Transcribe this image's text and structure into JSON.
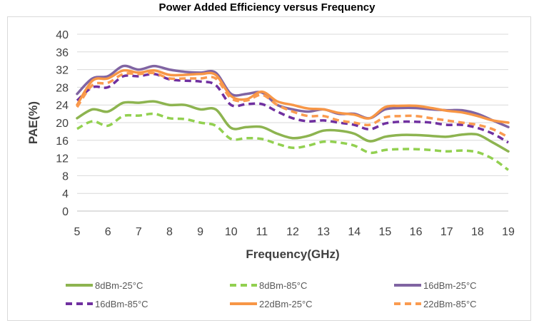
{
  "chart_data": {
    "type": "line",
    "title": "Power Added Efficiency  versus Frequency",
    "xlabel": "Frequency(GHz)",
    "ylabel": "PAE(%)",
    "xlim": [
      5,
      19
    ],
    "ylim": [
      0,
      40
    ],
    "x_ticks": [
      "5",
      "6",
      "7",
      "8",
      "9",
      "10",
      "11",
      "12",
      "13",
      "14",
      "15",
      "16",
      "17",
      "18",
      "19"
    ],
    "y_ticks": [
      "0",
      "4",
      "8",
      "12",
      "16",
      "20",
      "24",
      "28",
      "32",
      "36",
      "40"
    ],
    "grid": "horizontal",
    "legend_position": "bottom",
    "x": [
      5,
      5.5,
      6,
      6.5,
      7,
      7.5,
      8,
      8.5,
      9,
      9.5,
      10,
      10.5,
      11,
      11.5,
      12,
      12.5,
      13,
      13.5,
      14,
      14.5,
      15,
      15.5,
      16,
      16.5,
      17,
      17.5,
      18,
      18.5,
      19
    ],
    "series": [
      {
        "name": "8dBm-25°C",
        "color": "#8db450",
        "dash": false,
        "values": [
          21,
          23,
          22.5,
          24.5,
          24.5,
          24.8,
          24,
          24,
          23,
          23,
          18.8,
          19,
          19,
          17.5,
          16.5,
          17,
          18.2,
          18.2,
          17.5,
          15.8,
          16.8,
          17.2,
          17.2,
          17,
          16.8,
          17.3,
          17.3,
          15.5,
          13.5
        ]
      },
      {
        "name": "8dBm-85°C",
        "color": "#92d050",
        "dash": true,
        "values": [
          18.6,
          20.3,
          19.3,
          21.5,
          21.6,
          22,
          21,
          20.8,
          20,
          19.3,
          16.3,
          16.5,
          16.3,
          15.2,
          14.3,
          14.8,
          15.7,
          15.5,
          14.8,
          13.2,
          13.8,
          14,
          14,
          13.8,
          13.5,
          13.7,
          13.3,
          11.8,
          9.3
        ]
      },
      {
        "name": "16dBm-25°C",
        "color": "#8064a2",
        "dash": false,
        "values": [
          26.5,
          30,
          30.5,
          32.8,
          32,
          32.8,
          32,
          31.5,
          31.3,
          31.3,
          26.5,
          26.5,
          26.8,
          24,
          23,
          22.5,
          23,
          22,
          22,
          21,
          23,
          23.3,
          23.3,
          23,
          22.8,
          22.8,
          22,
          20.5,
          19
        ]
      },
      {
        "name": "16dBm-85°C",
        "color": "#7030a0",
        "dash": true,
        "values": [
          25,
          28,
          28,
          30.5,
          30.5,
          31,
          29.8,
          29.5,
          29.3,
          28.5,
          24,
          24.2,
          24.2,
          22.5,
          21,
          20.3,
          20.5,
          20,
          19.5,
          18.5,
          19.8,
          20.2,
          20.2,
          20,
          19.5,
          19.5,
          18.8,
          17.5,
          15.5
        ]
      },
      {
        "name": "22dBm-25°C",
        "color": "#f79646",
        "dash": false,
        "values": [
          24,
          29.5,
          30,
          31.8,
          31.3,
          31.8,
          30.8,
          30.8,
          31,
          30.8,
          26,
          25.3,
          27,
          24.8,
          24,
          23.2,
          23,
          22.2,
          21.8,
          21,
          23.5,
          23.8,
          23.8,
          23.3,
          22.7,
          22.3,
          21.5,
          20.5,
          20
        ]
      },
      {
        "name": "22dBm-85°C",
        "color": "#fa9b50",
        "dash": true,
        "values": [
          23.5,
          28.5,
          29,
          31,
          31,
          31.2,
          30,
          30,
          30,
          30,
          25.5,
          25,
          26.3,
          24,
          22.5,
          21.5,
          21.5,
          20.5,
          20,
          19.5,
          21.2,
          21.5,
          21.5,
          21,
          20.5,
          20,
          19.5,
          18.5,
          16.7
        ]
      }
    ]
  }
}
